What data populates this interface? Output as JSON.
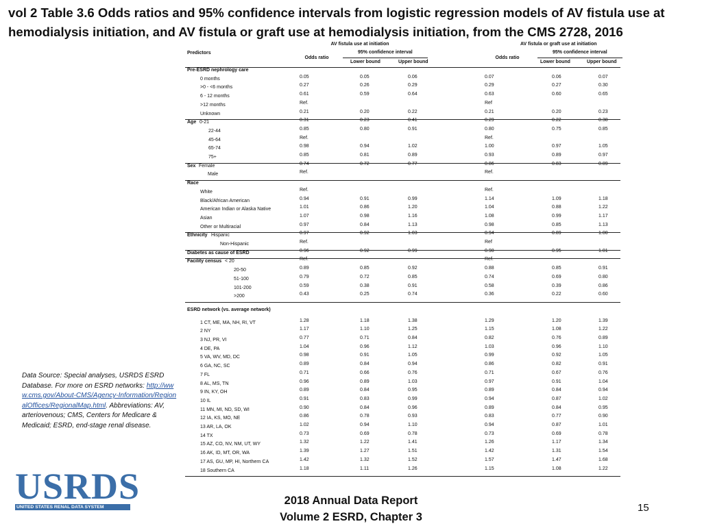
{
  "title": "vol 2 Table 3.6 Odds ratios and 95% confidence intervals from logistic regression models of AV fistula use at hemodialysis initiation, and AV fistula or graft use at hemodialysis initiation, from the CMS 2728, 2016",
  "table": {
    "group_headers": [
      "AV fistula use at initiation",
      "AV fistula or graft use at initiation"
    ],
    "predictors_header": "Predictors",
    "odds_ratio_header": "Odds ratio",
    "ci_header": "95% confidence interval",
    "lower_header": "Lower bound",
    "upper_header": "Upper bound",
    "sections": [
      {
        "title": "Pre-ESRD nephrology care",
        "rows": [
          {
            "label": "0 months",
            "values": [
              "0.05",
              "0.05",
              "0.06",
              "0.07",
              "0.06",
              "0.07"
            ]
          },
          {
            "label": ">0 - <6 months",
            "values": [
              "0.27",
              "0.26",
              "0.29",
              "0.29",
              "0.27",
              "0.30"
            ]
          },
          {
            "label": "6 - 12 months",
            "values": [
              "0.61",
              "0.59",
              "0.64",
              "0.63",
              "0.60",
              "0.65"
            ]
          },
          {
            "label": ">12 months",
            "values": [
              "Ref.",
              null,
              null,
              "Ref",
              null,
              null
            ]
          },
          {
            "label": "Unknown",
            "values": [
              "0.21",
              "0.20",
              "0.22",
              "0.21",
              "0.20",
              "0.23"
            ]
          }
        ]
      },
      {
        "title": "Age",
        "inline": true,
        "rows": [
          {
            "label": "0-21",
            "values": [
              "0.31",
              "0.23",
              "0.41",
              "0.29",
              "0.22",
              "0.38"
            ]
          },
          {
            "label": "22-44",
            "values": [
              "0.85",
              "0.80",
              "0.91",
              "0.80",
              "0.75",
              "0.85"
            ]
          },
          {
            "label": "45-64",
            "values": [
              "Ref.",
              null,
              null,
              "Ref.",
              null,
              null
            ]
          },
          {
            "label": "65-74",
            "values": [
              "0.98",
              "0.94",
              "1.02",
              "1.00",
              "0.97",
              "1.05"
            ]
          },
          {
            "label": "75+",
            "values": [
              "0.85",
              "0.81",
              "0.89",
              "0.93",
              "0.89",
              "0.97"
            ]
          }
        ]
      },
      {
        "title": "Sex",
        "inline": true,
        "rows": [
          {
            "label": "Female",
            "values": [
              "0.74",
              "0.72",
              "0.77",
              "0.86",
              "0.83",
              "0.89"
            ]
          },
          {
            "label": "Male",
            "values": [
              "Ref.",
              null,
              null,
              "Ref.",
              null,
              null
            ]
          }
        ]
      },
      {
        "title": "Race",
        "rows": [
          {
            "label": "White",
            "values": [
              "Ref.",
              null,
              null,
              "Ref.",
              null,
              null
            ]
          },
          {
            "label": "Black/African American",
            "values": [
              "0.94",
              "0.91",
              "0.99",
              "1.14",
              "1.09",
              "1.18"
            ]
          },
          {
            "label": "American Indian or Alaska Native",
            "values": [
              "1.01",
              "0.86",
              "1.20",
              "1.04",
              "0.88",
              "1.22"
            ]
          },
          {
            "label": "Asian",
            "values": [
              "1.07",
              "0.98",
              "1.16",
              "1.08",
              "0.99",
              "1.17"
            ]
          },
          {
            "label": "Other or Multiracial",
            "values": [
              "0.97",
              "0.84",
              "1.13",
              "0.98",
              "0.85",
              "1.13"
            ]
          }
        ]
      },
      {
        "title": "Ethnicity",
        "inline": true,
        "rows": [
          {
            "label": "Hispanic",
            "values": [
              "0.97",
              "0.92",
              "1.03",
              "0.94",
              "0.89",
              "1.00"
            ]
          },
          {
            "label": "Non-Hispanic",
            "values": [
              "Ref.",
              null,
              null,
              "Ref",
              null,
              null
            ]
          }
        ]
      },
      {
        "title": "Diabetes as cause of ESRD",
        "values": [
          "0.96",
          "0.92",
          "0.99",
          "0.98",
          "0.95",
          "1.01"
        ]
      },
      {
        "title": "Facility census",
        "inline": true,
        "rows": [
          {
            "label": "< 20",
            "values": [
              "Ref.",
              null,
              null,
              "Ref.",
              null,
              null
            ]
          },
          {
            "label": "20-50",
            "values": [
              "0.89",
              "0.85",
              "0.92",
              "0.88",
              "0.85",
              "0.91"
            ]
          },
          {
            "label": "51-100",
            "values": [
              "0.79",
              "0.72",
              "0.85",
              "0.74",
              "0.69",
              "0.80"
            ]
          },
          {
            "label": "101-200",
            "values": [
              "0.59",
              "0.38",
              "0.91",
              "0.58",
              "0.39",
              "0.86"
            ]
          },
          {
            "label": ">200",
            "values": [
              "0.43",
              "0.25",
              "0.74",
              "0.36",
              "0.22",
              "0.60"
            ]
          }
        ]
      },
      {
        "title": "ESRD network (vs. average network)",
        "rows": [
          {
            "label": "1 CT, ME, MA, NH, RI, VT",
            "values": [
              "1.28",
              "1.18",
              "1.38",
              "1.29",
              "1.20",
              "1.39"
            ]
          },
          {
            "label": "2 NY",
            "values": [
              "1.17",
              "1.10",
              "1.25",
              "1.15",
              "1.08",
              "1.22"
            ]
          },
          {
            "label": "3 NJ, PR, VI",
            "values": [
              "0.77",
              "0.71",
              "0.84",
              "0.82",
              "0.76",
              "0.89"
            ]
          },
          {
            "label": "4 DE, PA",
            "values": [
              "1.04",
              "0.96",
              "1.12",
              "1.03",
              "0.96",
              "1.10"
            ]
          },
          {
            "label": "5 VA, WV, MD, DC",
            "values": [
              "0.98",
              "0.91",
              "1.05",
              "0.99",
              "0.92",
              "1.05"
            ]
          },
          {
            "label": "6 GA, NC, SC",
            "values": [
              "0.89",
              "0.84",
              "0.94",
              "0.86",
              "0.82",
              "0.91"
            ]
          },
          {
            "label": "7 FL",
            "values": [
              "0.71",
              "0.66",
              "0.76",
              "0.71",
              "0.67",
              "0.76"
            ]
          },
          {
            "label": "8 AL, MS, TN",
            "values": [
              "0.96",
              "0.89",
              "1.03",
              "0.97",
              "0.91",
              "1.04"
            ]
          },
          {
            "label": "9 IN, KY, OH",
            "values": [
              "0.89",
              "0.84",
              "0.95",
              "0.89",
              "0.84",
              "0.94"
            ]
          },
          {
            "label": "10 IL",
            "values": [
              "0.91",
              "0.83",
              "0.99",
              "0.94",
              "0.87",
              "1.02"
            ]
          },
          {
            "label": "11 MN, MI, ND, SD, WI",
            "values": [
              "0.90",
              "0.84",
              "0.96",
              "0.89",
              "0.84",
              "0.95"
            ]
          },
          {
            "label": "12 IA, KS, MO, NE",
            "values": [
              "0.86",
              "0.78",
              "0.93",
              "0.83",
              "0.77",
              "0.90"
            ]
          },
          {
            "label": "13 AR, LA, OK",
            "values": [
              "1.02",
              "0.94",
              "1.10",
              "0.94",
              "0.87",
              "1.01"
            ]
          },
          {
            "label": "14 TX",
            "values": [
              "0.73",
              "0.69",
              "0.78",
              "0.73",
              "0.69",
              "0.78"
            ]
          },
          {
            "label": "15 AZ, CO, NV, NM, UT, WY",
            "values": [
              "1.32",
              "1.22",
              "1.41",
              "1.26",
              "1.17",
              "1.34"
            ]
          },
          {
            "label": "16 AK, ID, MT, OR, WA",
            "values": [
              "1.39",
              "1.27",
              "1.51",
              "1.42",
              "1.31",
              "1.54"
            ]
          },
          {
            "label": "17 AS, GU, MP, HI, Northern CA",
            "values": [
              "1.42",
              "1.32",
              "1.52",
              "1.57",
              "1.47",
              "1.68"
            ]
          },
          {
            "label": "18 Southern CA",
            "values": [
              "1.18",
              "1.11",
              "1.26",
              "1.15",
              "1.08",
              "1.22"
            ]
          }
        ]
      }
    ]
  },
  "note": {
    "before": "Data Source: Special analyses, USRDS ESRD Database. For more on ESRD networks: ",
    "link": "http://www.cms.gov/About-CMS/Agency-Information/RegionalOffices/RegionalMap.html",
    "after": ". Abbreviations: AV, arteriovenous; CMS, Centers for Medicare & Medicaid; ESRD, end-stage renal disease."
  },
  "logo": {
    "name": "USRDS",
    "subtitle": "UNITED STATES RENAL DATA SYSTEM"
  },
  "footer": {
    "line1": "2018 Annual Data Report",
    "line2": "Volume 2 ESRD, Chapter 3",
    "page": "15"
  }
}
